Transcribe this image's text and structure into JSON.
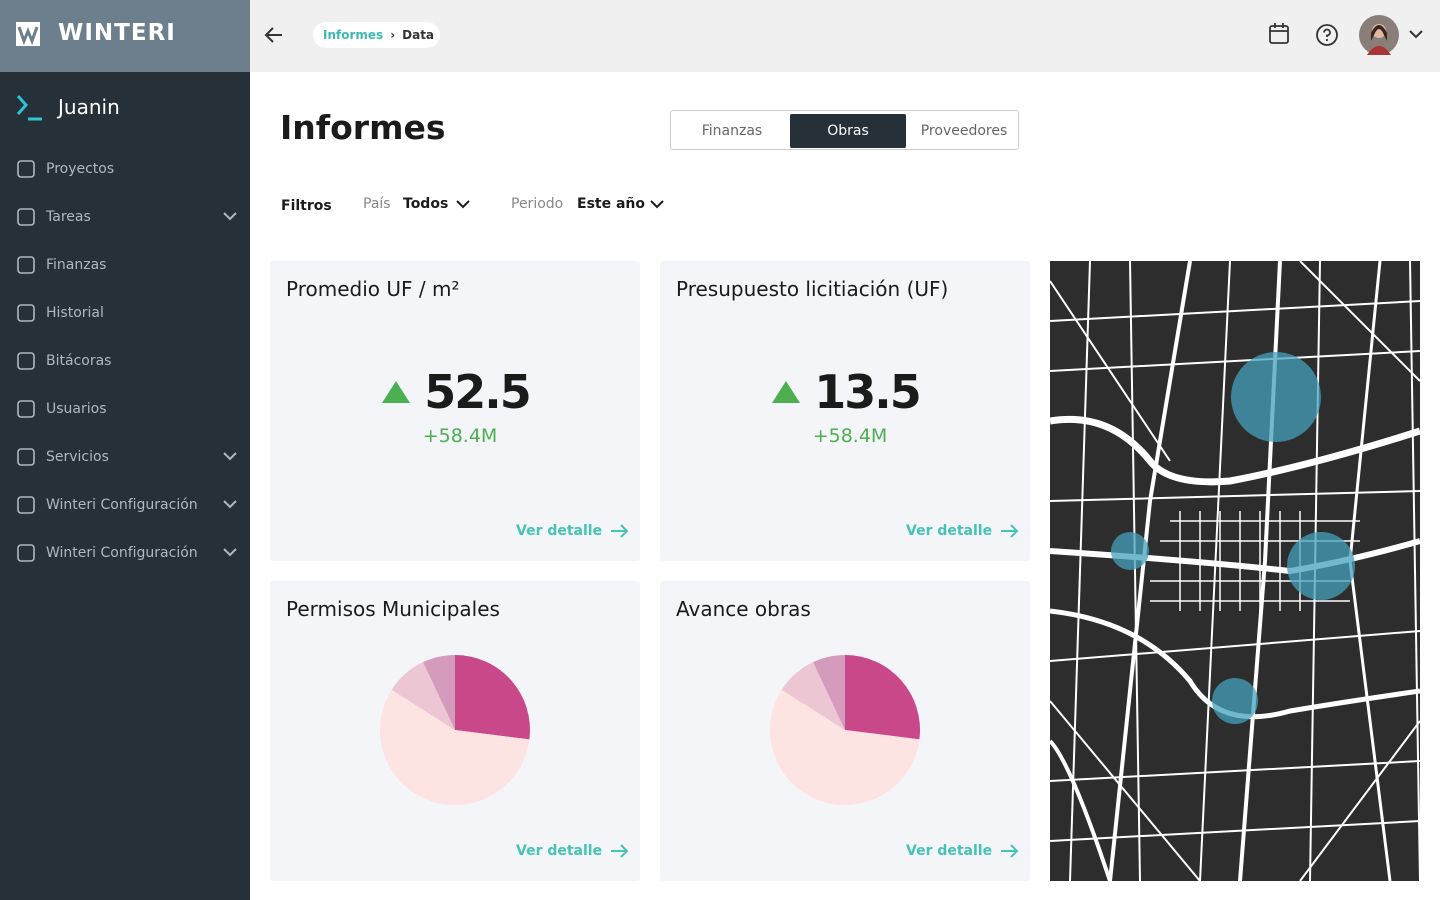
{
  "brand": "WINTERI",
  "breadcrumb": [
    "Informes",
    "Data"
  ],
  "user": "Juanin",
  "nav": [
    {
      "label": "Proyectos",
      "expandable": false
    },
    {
      "label": "Tareas",
      "expandable": true
    },
    {
      "label": "Finanzas",
      "expandable": false
    },
    {
      "label": "Historial",
      "expandable": false
    },
    {
      "label": "Bitácoras",
      "expandable": false
    },
    {
      "label": "Usuarios",
      "expandable": false
    },
    {
      "label": "Servicios",
      "expandable": true
    },
    {
      "label": "Winteri Configuración",
      "expandable": true
    },
    {
      "label": "Winteri Configuración",
      "expandable": true
    }
  ],
  "page_title": "Informes",
  "tabs": {
    "items": [
      "Finanzas",
      "Obras",
      "Proveedores"
    ],
    "active": 1
  },
  "filters": {
    "label": "Filtros",
    "items": [
      {
        "label": "País",
        "value": "Todos"
      },
      {
        "label": "Periodo",
        "value": "Este año"
      }
    ]
  },
  "cards": [
    {
      "title": "Promedio UF / m²",
      "kpi": {
        "value": 52.5,
        "change": "+58.4M"
      },
      "link": "Ver detalle"
    },
    {
      "title": "Presupuesto licitiación (UF)",
      "kpi": {
        "value": 13.5,
        "change": "+58.4M"
      },
      "link": "Ver detalle"
    },
    {
      "title": "Permisos Municipales",
      "pie": {
        "values": [
          27,
          57,
          9,
          7
        ],
        "colors": [
          "#c9488a",
          "#fde3e1",
          "#ecc6d2",
          "#d49bbd"
        ]
      },
      "link": "Ver detalle"
    },
    {
      "title": "Avance obras",
      "pie": {
        "values": [
          27,
          57,
          9,
          7
        ],
        "colors": [
          "#c9488a",
          "#fde3e1",
          "#ecc6d2",
          "#d49bbd"
        ]
      },
      "link": "Ver detalle"
    }
  ]
}
